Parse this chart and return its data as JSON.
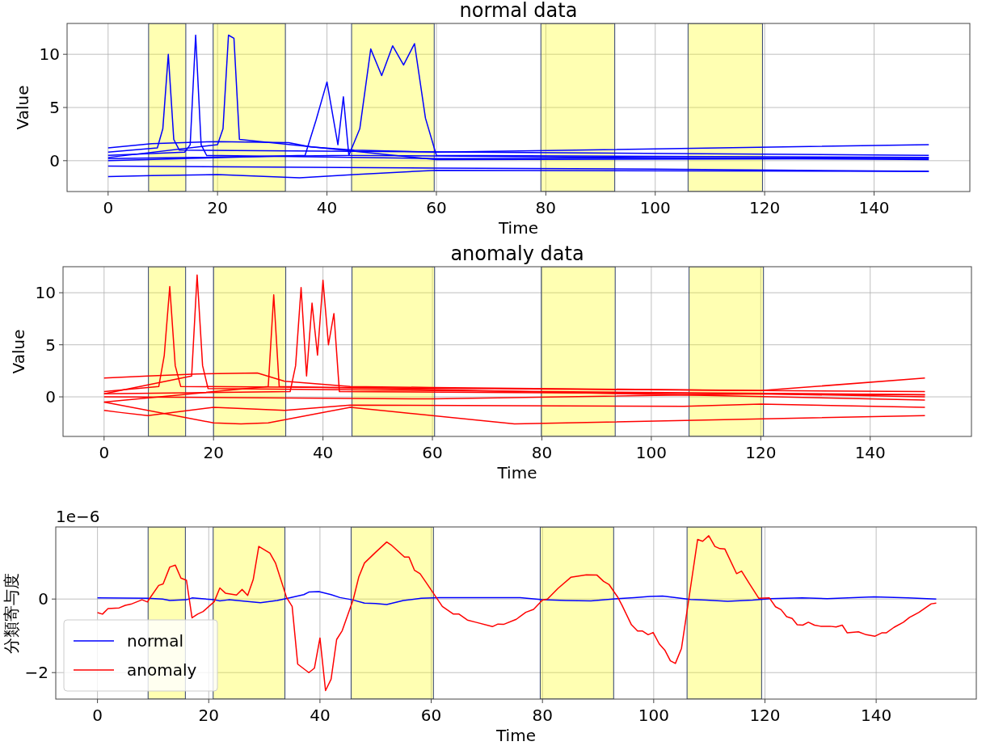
{
  "chart_data": [
    {
      "type": "line",
      "title": "normal data",
      "xlabel": "Time",
      "ylabel": "Value",
      "xlim": [
        -7.5,
        157.5
      ],
      "ylim": [
        -2.9,
        12.9
      ],
      "xticks": [
        0,
        20,
        40,
        60,
        80,
        100,
        120,
        140
      ],
      "yticks": [
        0,
        5,
        10
      ],
      "grid": true,
      "bands": [
        {
          "axis": "x",
          "from": 7.4,
          "to": 14.2,
          "color": "#ffff00"
        },
        {
          "axis": "x",
          "from": 19.2,
          "to": 32.4,
          "color": "#ffff00"
        },
        {
          "axis": "x",
          "from": 44.5,
          "to": 59.6,
          "color": "#ffff00"
        },
        {
          "axis": "x",
          "from": 79.1,
          "to": 92.6,
          "color": "#ffff00"
        },
        {
          "axis": "x",
          "from": 106.0,
          "to": 119.6,
          "color": "#ffff00"
        }
      ],
      "series": [
        {
          "color": "#0000ff",
          "x": [
            0,
            8,
            20,
            33,
            37,
            45,
            60,
            150
          ],
          "values": [
            1.2,
            1.6,
            1.8,
            1.7,
            1.3,
            1.0,
            0.8,
            1.5
          ]
        },
        {
          "color": "#0000ff",
          "x": [
            0,
            8,
            20,
            35,
            45,
            60,
            150
          ],
          "values": [
            -1.5,
            -1.4,
            -1.3,
            -1.6,
            -1.3,
            -0.9,
            -1.0
          ]
        },
        {
          "color": "#0000ff",
          "x": [
            0,
            14,
            15,
            16,
            17,
            18,
            60,
            150
          ],
          "values": [
            0.5,
            0.8,
            1.5,
            11.8,
            1.5,
            0.5,
            0.2,
            0.3
          ]
        },
        {
          "color": "#0000ff",
          "x": [
            0,
            20,
            21,
            22,
            23,
            24,
            60,
            150
          ],
          "values": [
            0.3,
            1.5,
            3,
            11.8,
            11.5,
            2,
            0.1,
            0.2
          ]
        },
        {
          "color": "#0000ff",
          "x": [
            0,
            9,
            10,
            11,
            12,
            13,
            150
          ],
          "values": [
            0.8,
            1.2,
            3,
            10,
            2,
            1.0,
            0.5
          ]
        },
        {
          "color": "#0000ff",
          "x": [
            0,
            44,
            46,
            48,
            50,
            52,
            54,
            56,
            58,
            60,
            150
          ],
          "values": [
            0.2,
            0.5,
            3,
            10.5,
            8,
            10.8,
            9,
            11,
            4,
            0.5,
            0.3
          ]
        },
        {
          "color": "#0000ff",
          "x": [
            0,
            36,
            38,
            40,
            42,
            43,
            44,
            150
          ],
          "values": [
            0,
            0.5,
            3.8,
            7.4,
            1.5,
            6,
            0.5,
            0.1
          ]
        },
        {
          "color": "#0000ff",
          "x": [
            0,
            60,
            100,
            150
          ],
          "values": [
            -0.5,
            -0.7,
            -0.8,
            -1.0
          ]
        }
      ]
    },
    {
      "type": "line",
      "title": "anomaly data",
      "xlabel": "Time",
      "ylabel": "Value",
      "xlim": [
        -7.5,
        158.5
      ],
      "ylim": [
        -3.8,
        12.5
      ],
      "xticks": [
        0,
        20,
        40,
        60,
        80,
        100,
        120,
        140
      ],
      "yticks": [
        0,
        5,
        10
      ],
      "grid": true,
      "bands": [
        {
          "axis": "x",
          "from": 8.1,
          "to": 14.9,
          "color": "#ffff00"
        },
        {
          "axis": "x",
          "from": 20.0,
          "to": 33.2,
          "color": "#ffff00"
        },
        {
          "axis": "x",
          "from": 45.3,
          "to": 60.4,
          "color": "#ffff00"
        },
        {
          "axis": "x",
          "from": 79.9,
          "to": 93.4,
          "color": "#ffff00"
        },
        {
          "axis": "x",
          "from": 106.9,
          "to": 120.5,
          "color": "#ffff00"
        }
      ],
      "series": [
        {
          "color": "#ff0000",
          "x": [
            0,
            8,
            17,
            28,
            33,
            45,
            60,
            120,
            150
          ],
          "values": [
            1.8,
            2.0,
            2.2,
            2.3,
            1.5,
            1.0,
            0.9,
            0.6,
            1.8
          ]
        },
        {
          "color": "#ff0000",
          "x": [
            0,
            3,
            8,
            20,
            33,
            45,
            106,
            120,
            150
          ],
          "values": [
            -1.3,
            -1.5,
            -1.8,
            -1.0,
            -1.3,
            -0.8,
            -0.9,
            -0.7,
            -1.0
          ]
        },
        {
          "color": "#ff0000",
          "x": [
            0,
            10,
            11,
            12,
            13,
            14,
            150
          ],
          "values": [
            0.5,
            1,
            4,
            10.6,
            3,
            1,
            0.5
          ]
        },
        {
          "color": "#ff0000",
          "x": [
            0,
            16,
            17,
            18,
            19,
            150
          ],
          "values": [
            0.3,
            2,
            11.7,
            3,
            0.8,
            0.2
          ]
        },
        {
          "color": "#ff0000",
          "x": [
            0,
            30,
            31,
            32,
            150
          ],
          "values": [
            -0.5,
            1,
            9.8,
            1,
            -0.3
          ]
        },
        {
          "color": "#ff0000",
          "x": [
            0,
            34,
            35,
            36,
            37,
            38,
            39,
            40,
            41,
            42,
            43,
            150
          ],
          "values": [
            0.3,
            0.5,
            3,
            10.5,
            2,
            9,
            4,
            11.2,
            5,
            8,
            0.5,
            0.2
          ]
        },
        {
          "color": "#ff0000",
          "x": [
            0,
            20,
            25,
            30,
            45,
            75,
            150
          ],
          "values": [
            -0.5,
            -2.5,
            -2.6,
            -2.5,
            -1,
            -2.6,
            -1.8
          ]
        },
        {
          "color": "#ff0000",
          "x": [
            0,
            60,
            120,
            150
          ],
          "values": [
            0,
            -0.2,
            0.3,
            0.0
          ]
        }
      ]
    },
    {
      "type": "line",
      "xlabel": "Time",
      "ylabel": "分類寄与度",
      "annotations": [
        "1e−6"
      ],
      "xlim": [
        -7.5,
        158
      ],
      "ylim": [
        -2.72,
        1.96
      ],
      "xticks": [
        0,
        20,
        40,
        60,
        80,
        100,
        120,
        140
      ],
      "yticks": [
        {
          "value": -2,
          "label": "−2"
        },
        0
      ],
      "grid": true,
      "legend": "bottom left",
      "bands": [
        {
          "axis": "x",
          "from": 9.1,
          "to": 15.8,
          "color": "#ffff00"
        },
        {
          "axis": "x",
          "from": 20.8,
          "to": 33.7,
          "color": "#ffff00"
        },
        {
          "axis": "x",
          "from": 45.6,
          "to": 60.4,
          "color": "#ffff00"
        },
        {
          "axis": "x",
          "from": 79.6,
          "to": 92.8,
          "color": "#ffff00"
        },
        {
          "axis": "x",
          "from": 106.0,
          "to": 119.4,
          "color": "#ffff00"
        }
      ],
      "series": [
        {
          "name": "normal",
          "color": "#0000ff",
          "x": [
            0,
            9,
            11.7,
            13,
            16,
            17,
            21,
            22,
            23.6,
            29.3,
            32.3,
            34.2,
            37.1,
            38,
            39.8,
            42,
            43.6,
            45.8,
            48,
            50,
            52,
            55,
            58.2,
            61.5,
            76,
            80,
            84.2,
            88.7,
            93.5,
            96.5,
            99.3,
            101.6,
            104,
            106.6,
            109.4,
            113.3,
            117.8,
            121,
            126.7,
            131.2,
            139.6,
            145.7,
            150.8
          ],
          "values": [
            0.03,
            0.02,
            0,
            -0.04,
            -0.02,
            0.03,
            -0.02,
            -0.05,
            -0.02,
            -0.1,
            -0.04,
            0.02,
            0.12,
            0.19,
            0.2,
            0.12,
            0.04,
            -0.02,
            -0.11,
            -0.12,
            -0.15,
            -0.04,
            0.02,
            0.04,
            0.04,
            -0.02,
            -0.04,
            -0.05,
            0.01,
            0.04,
            0.07,
            0.08,
            0.04,
            -0.01,
            -0.03,
            -0.06,
            -0.03,
            0.01,
            0.03,
            0.01,
            0.06,
            0.03,
            0
          ]
        },
        {
          "name": "anomaly",
          "color": "#ff0000",
          "x": [
            0,
            0.9,
            1.9,
            3.9,
            5,
            6,
            8,
            9,
            9.3,
            11,
            11.8,
            13,
            14,
            15,
            16,
            17,
            18,
            19,
            21,
            22,
            23,
            25,
            26,
            27,
            28,
            29,
            31,
            32,
            34,
            35,
            36,
            38,
            39,
            40,
            41,
            42,
            43,
            44,
            46,
            47,
            48,
            50,
            52,
            52.8,
            55.2,
            56,
            57,
            58,
            59,
            60.6,
            62,
            64,
            65,
            66.5,
            68,
            71,
            72,
            73,
            75.3,
            77,
            78.4,
            80,
            80.9,
            82.8,
            85.1,
            87.9,
            89.8,
            91,
            92,
            93.5,
            94.3,
            96,
            97.1,
            98,
            99,
            99.9,
            101,
            102,
            103,
            103.9,
            105,
            106.6,
            107.9,
            108.8,
            109.9,
            111,
            111.9,
            112.8,
            114.9,
            115.8,
            117.2,
            118.9,
            120.8,
            121.9,
            122.9,
            123.9,
            124.9,
            125.8,
            126.8,
            127.8,
            128.9,
            130,
            131.7,
            132.8,
            133.9,
            134.8,
            136.8,
            138.2,
            139.8,
            141,
            141.8,
            143.2,
            144.9,
            146,
            147.7,
            149.9,
            150.8
          ],
          "values": [
            -0.37,
            -0.41,
            -0.26,
            -0.24,
            -0.17,
            -0.14,
            -0.02,
            -0.08,
            0,
            0.37,
            0.41,
            0.87,
            0.92,
            0.57,
            0.51,
            -0.51,
            -0.41,
            -0.34,
            -0.07,
            0.3,
            0.16,
            0.11,
            0.26,
            0.1,
            0.53,
            1.43,
            1.25,
            0.98,
            0.04,
            -0.2,
            -1.77,
            -2.0,
            -1.88,
            -1.06,
            -2.49,
            -2.18,
            -1.1,
            -0.86,
            0,
            0.61,
            0.98,
            1.27,
            1.55,
            1.47,
            1.14,
            1.14,
            0.78,
            0.69,
            0.47,
            0.11,
            -0.2,
            -0.41,
            -0.41,
            -0.57,
            -0.63,
            -0.75,
            -0.68,
            -0.69,
            -0.55,
            -0.36,
            -0.28,
            -0.03,
            0,
            0.29,
            0.59,
            0.66,
            0.65,
            0.48,
            0.39,
            0.06,
            -0.17,
            -0.7,
            -0.87,
            -0.87,
            -0.97,
            -0.91,
            -1.22,
            -1.39,
            -1.68,
            -1.75,
            -1.34,
            0.29,
            1.62,
            1.57,
            1.72,
            1.43,
            1.37,
            1.36,
            0.69,
            0.76,
            0.42,
            0.02,
            0.03,
            -0.21,
            -0.29,
            -0.48,
            -0.53,
            -0.7,
            -0.71,
            -0.63,
            -0.71,
            -0.74,
            -0.74,
            -0.76,
            -0.71,
            -0.92,
            -0.89,
            -0.97,
            -1.01,
            -0.92,
            -0.92,
            -0.77,
            -0.63,
            -0.5,
            -0.36,
            -0.13,
            -0.11
          ]
        }
      ]
    }
  ]
}
